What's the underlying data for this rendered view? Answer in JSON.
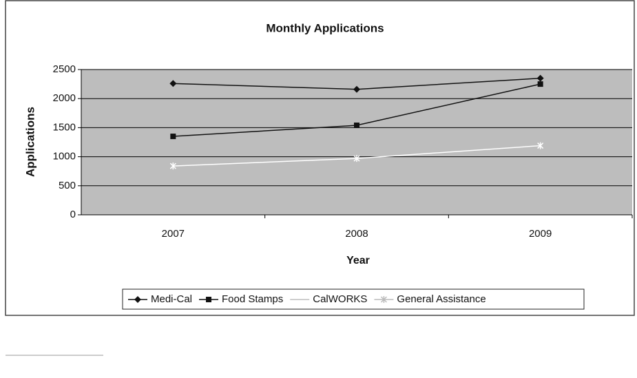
{
  "chart_data": {
    "type": "line",
    "title": "Monthly Applications",
    "xlabel": "Year",
    "ylabel": "Applications",
    "categories": [
      "2007",
      "2008",
      "2009"
    ],
    "series": [
      {
        "name": "Medi-Cal",
        "color": "#111111",
        "marker": "diamond",
        "values": [
          2260,
          2160,
          2350
        ]
      },
      {
        "name": "Food Stamps",
        "color": "#111111",
        "marker": "square",
        "values": [
          1350,
          1540,
          2250
        ]
      },
      {
        "name": "CalWORKS",
        "color": "#bdbdbd",
        "marker": "none",
        "values": [
          null,
          null,
          null
        ]
      },
      {
        "name": "General Assistance",
        "color": "#ffffff",
        "marker": "star",
        "values": [
          840,
          970,
          1190
        ]
      }
    ],
    "ylim": [
      0,
      2500
    ],
    "yticks": [
      0,
      500,
      1000,
      1500,
      2000,
      2500
    ],
    "grid": true,
    "legend": "bottom"
  }
}
